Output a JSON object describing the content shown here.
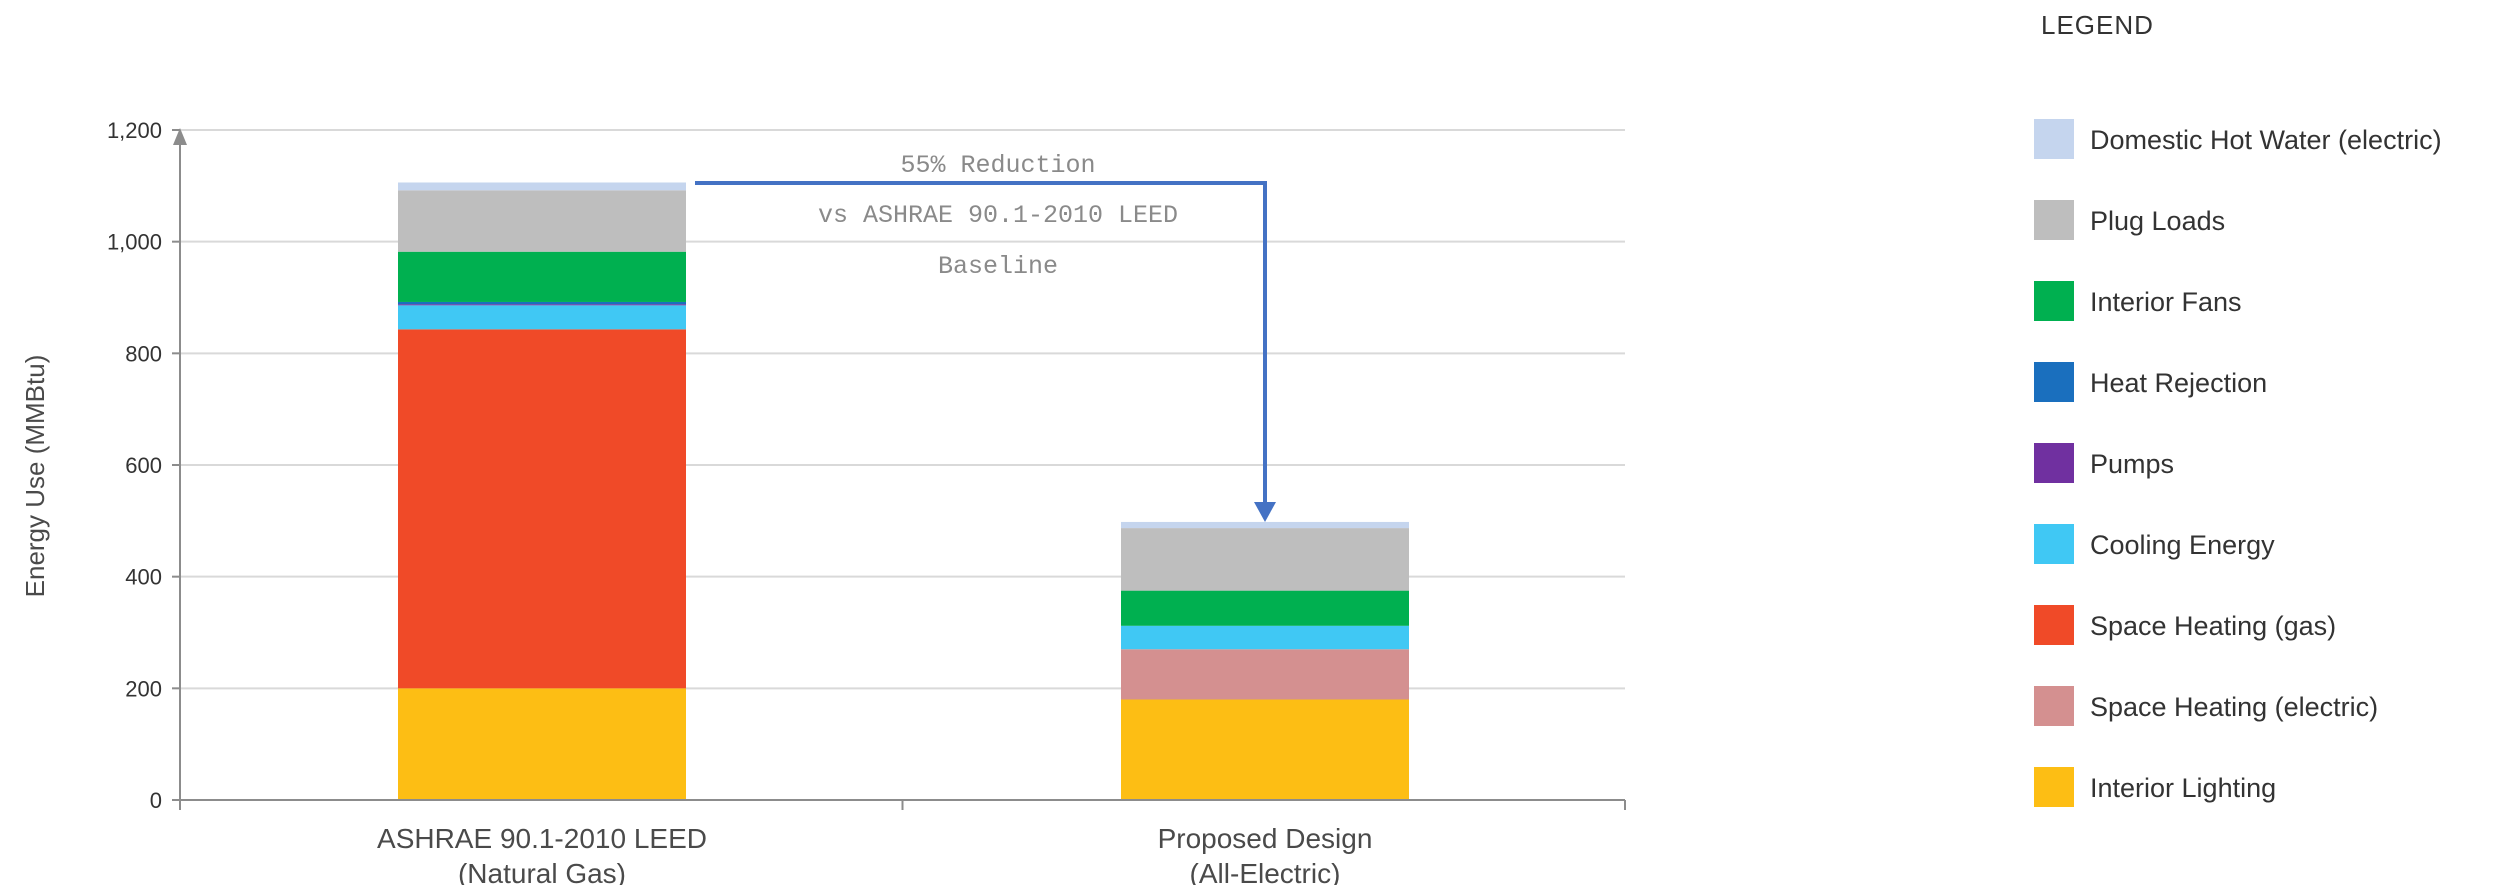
{
  "chart_data": {
    "type": "bar",
    "stacked": true,
    "categories": [
      [
        "ASHRAE 90.1-2010 LEED",
        "(Natural Gas)"
      ],
      [
        "Proposed Design",
        "(All-Electric)"
      ]
    ],
    "ylabel": "Energy Use (MMBtu)",
    "ylim": [
      0,
      1200
    ],
    "yticks": [
      0,
      200,
      400,
      600,
      800,
      1000,
      1200
    ],
    "ytick_labels": [
      "0",
      "200",
      "400",
      "600",
      "800",
      "1,000",
      "1,200"
    ],
    "grid": true,
    "series": [
      {
        "name": "Interior Lighting",
        "color": "#FDBE14",
        "values": [
          200,
          180
        ]
      },
      {
        "name": "Space Heating (electric)",
        "color": "#D49090",
        "values": [
          0,
          90
        ]
      },
      {
        "name": "Space Heating (gas)",
        "color": "#F04A28",
        "values": [
          643,
          0
        ]
      },
      {
        "name": "Cooling Energy",
        "color": "#40C8F4",
        "values": [
          43,
          42
        ]
      },
      {
        "name": "Pumps",
        "color": "#7030A0",
        "values": [
          2,
          0
        ]
      },
      {
        "name": "Heat Rejection",
        "color": "#1A6FBE",
        "values": [
          4,
          0
        ]
      },
      {
        "name": "Interior Fans",
        "color": "#00B050",
        "values": [
          90,
          63
        ]
      },
      {
        "name": "Plug Loads",
        "color": "#BEBEBE",
        "values": [
          110,
          112
        ]
      },
      {
        "name": "Domestic Hot Water (electric)",
        "color": "#C5D5EE",
        "values": [
          14,
          11
        ]
      }
    ],
    "annotation": {
      "lines": [
        "55% Reduction",
        "vs ASHRAE 90.1-2010 LEED",
        "Baseline"
      ],
      "arrow_color": "#4472C4"
    },
    "legend": {
      "title": "LEGEND",
      "placement": "right",
      "items": [
        {
          "label": "Domestic Hot Water (electric)",
          "color": "#C5D5EE"
        },
        {
          "label": "Plug Loads",
          "color": "#BEBEBE"
        },
        {
          "label": "Interior Fans",
          "color": "#00B050"
        },
        {
          "label": "Heat Rejection",
          "color": "#1A6FBE"
        },
        {
          "label": "Pumps",
          "color": "#7030A0"
        },
        {
          "label": "Cooling Energy",
          "color": "#40C8F4"
        },
        {
          "label": "Space Heating (gas)",
          "color": "#F04A28"
        },
        {
          "label": "Space Heating (electric)",
          "color": "#D49090"
        },
        {
          "label": "Interior Lighting",
          "color": "#FDBE14"
        }
      ]
    }
  }
}
